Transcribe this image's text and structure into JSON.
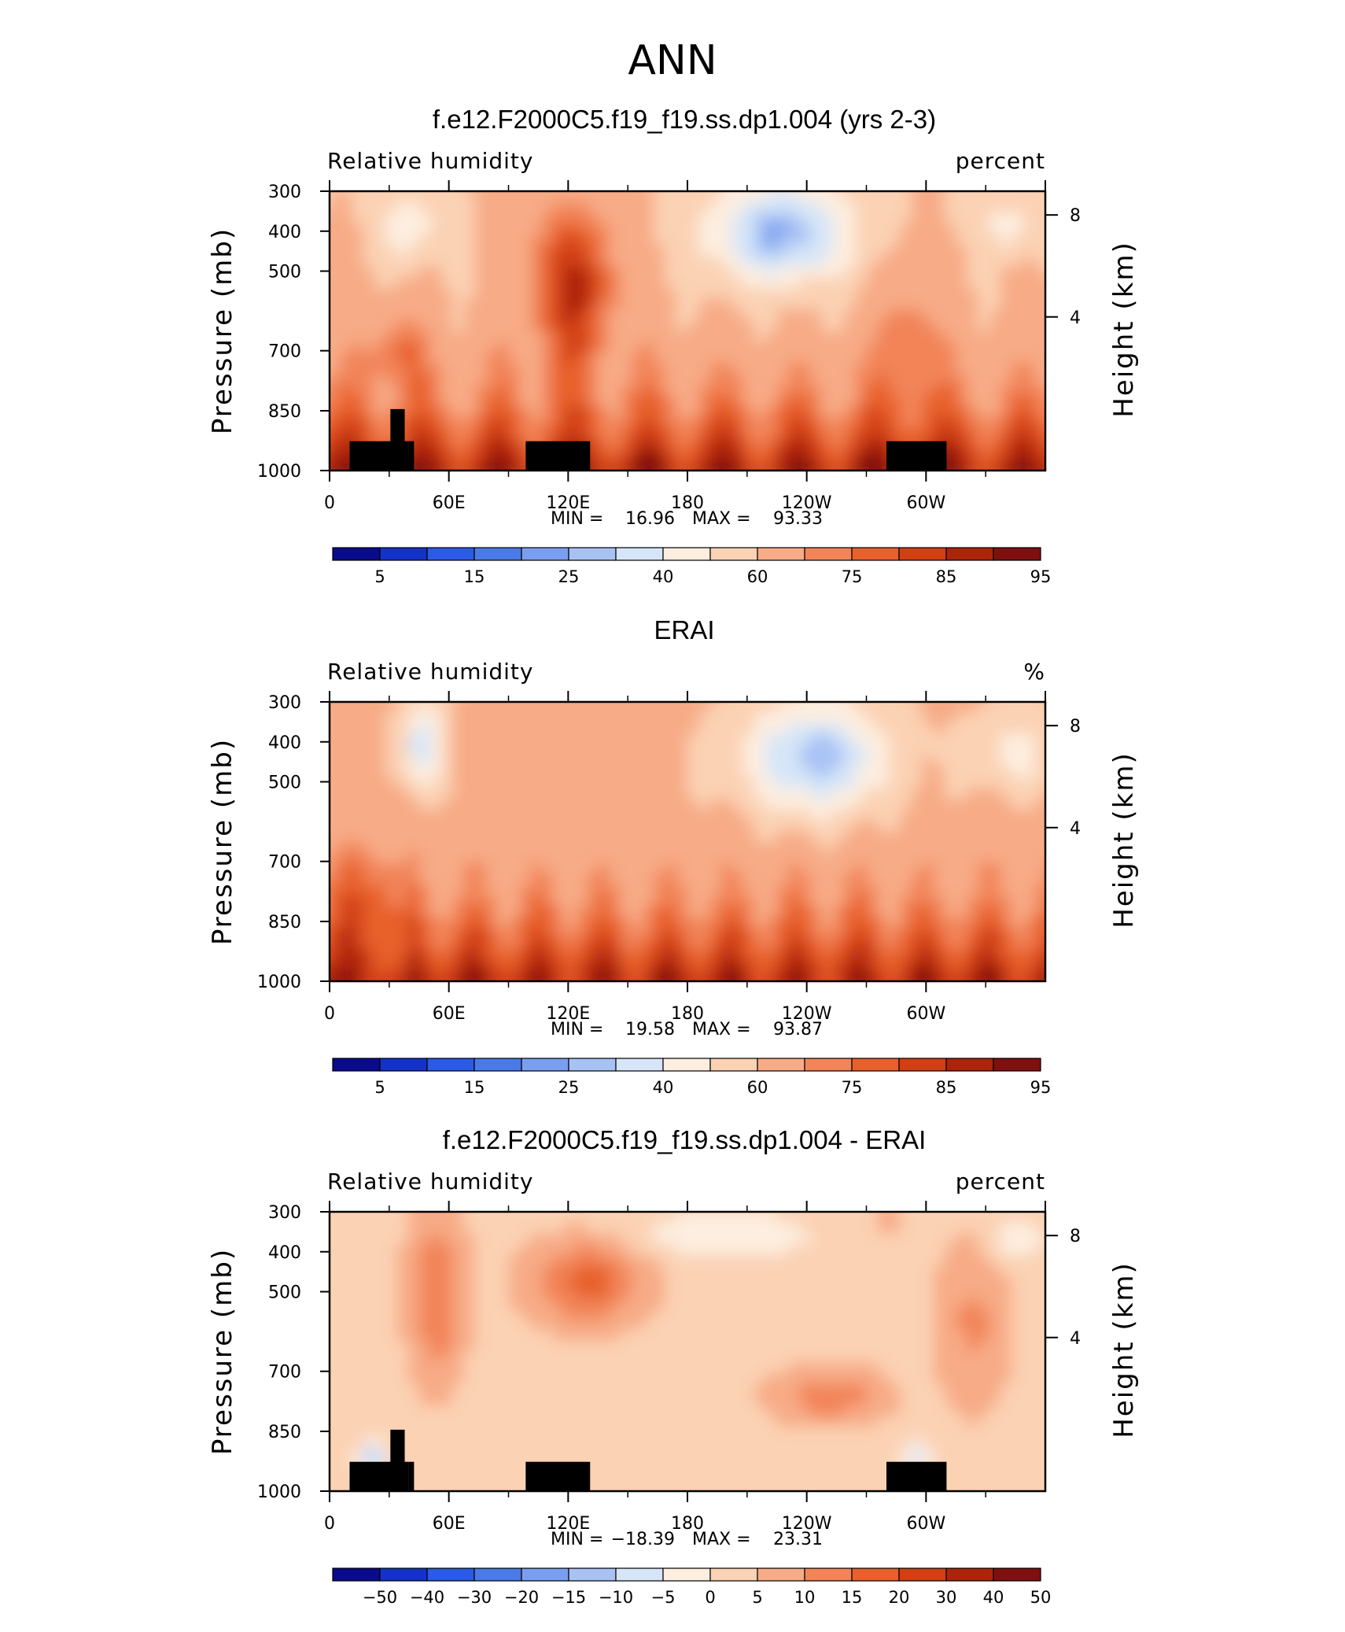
{
  "figure_title": "ANN",
  "colors": {
    "rh_scale": [
      "#0a0a8c",
      "#1432c8",
      "#2a5ae6",
      "#4a7ae8",
      "#7a9ef0",
      "#a8c2f4",
      "#d6e6f8",
      "#fdeee0",
      "#fbd2b4",
      "#f7ab86",
      "#f28458",
      "#e8602c",
      "#d23f12",
      "#ac240a",
      "#801010"
    ],
    "diff_scale": [
      "#0a0a8c",
      "#1432c8",
      "#2a5ae6",
      "#4a7ae8",
      "#7a9ef0",
      "#a8c2f4",
      "#d6e6f8",
      "#fdeee0",
      "#fbd2b4",
      "#f7ab86",
      "#f28458",
      "#e8602c",
      "#d23f12",
      "#ac240a",
      "#801010"
    ],
    "orography": "#000000"
  },
  "chart_data": [
    {
      "type": "heatmap",
      "title": "f.e12.F2000C5.f19_f19.ss.dp1.004 (yrs 2-3)",
      "left_label": "Relative  humidity",
      "right_label": "percent",
      "ylabel": "Pressure  (mb)",
      "ylabel_right": "Height  (km)",
      "x_ticks": [
        "0",
        "60E",
        "120E",
        "180",
        "120W",
        "60W"
      ],
      "y_ticks": [
        "300",
        "400",
        "500",
        "700",
        "850",
        "1000"
      ],
      "y_ticks_right": [
        "8",
        "4"
      ],
      "stats": {
        "min_label": "MIN =",
        "min": "16.96",
        "max_label": "MAX =",
        "max": "93.33"
      },
      "levels": [
        "5",
        "15",
        "25",
        "40",
        "60",
        "75",
        "85",
        "95"
      ],
      "contour_levels": [
        5,
        10,
        15,
        20,
        25,
        30,
        40,
        50,
        60,
        70,
        75,
        80,
        85,
        90,
        95
      ],
      "min": 16.96,
      "max": 93.33
    },
    {
      "type": "heatmap",
      "title": "ERAI",
      "left_label": "Relative  humidity",
      "right_label": "%",
      "ylabel": "Pressure  (mb)",
      "ylabel_right": "Height  (km)",
      "x_ticks": [
        "0",
        "60E",
        "120E",
        "180",
        "120W",
        "60W"
      ],
      "y_ticks": [
        "300",
        "400",
        "500",
        "700",
        "850",
        "1000"
      ],
      "y_ticks_right": [
        "8",
        "4"
      ],
      "stats": {
        "min_label": "MIN =",
        "min": "19.58",
        "max_label": "MAX =",
        "max": "93.87"
      },
      "levels": [
        "5",
        "15",
        "25",
        "40",
        "60",
        "75",
        "85",
        "95"
      ],
      "contour_levels": [
        5,
        10,
        15,
        20,
        25,
        30,
        40,
        50,
        60,
        70,
        75,
        80,
        85,
        90,
        95
      ],
      "min": 19.58,
      "max": 93.87
    },
    {
      "type": "heatmap",
      "title": "f.e12.F2000C5.f19_f19.ss.dp1.004 - ERAI",
      "left_label": "Relative  humidity",
      "right_label": "percent",
      "ylabel": "Pressure  (mb)",
      "ylabel_right": "Height  (km)",
      "x_ticks": [
        "0",
        "60E",
        "120E",
        "180",
        "120W",
        "60W"
      ],
      "y_ticks": [
        "300",
        "400",
        "500",
        "700",
        "850",
        "1000"
      ],
      "y_ticks_right": [
        "8",
        "4"
      ],
      "stats": {
        "min_label": "MIN =",
        "min": "−18.39",
        "max_label": "MAX =",
        "max": "23.31"
      },
      "levels": [
        "−50",
        "−40",
        "−30",
        "−20",
        "−15",
        "−10",
        "−5",
        "0",
        "5",
        "10",
        "15",
        "20",
        "30",
        "40",
        "50"
      ],
      "contour_levels": [
        -50,
        -40,
        -30,
        -20,
        -15,
        -10,
        -5,
        0,
        5,
        10,
        15,
        20,
        30,
        40,
        50
      ],
      "min": -18.39,
      "max": 23.31
    }
  ]
}
